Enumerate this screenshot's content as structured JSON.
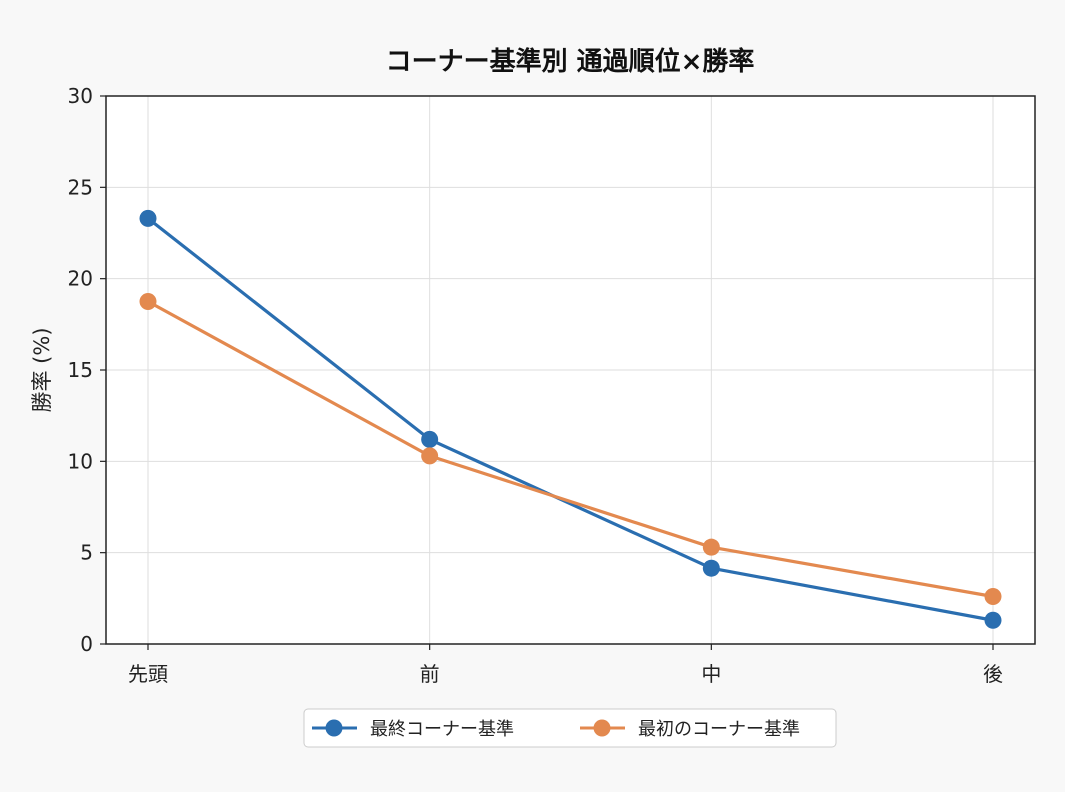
{
  "chart_data": {
    "type": "line",
    "title": "コーナー基準別 通過順位×勝率",
    "xlabel": "",
    "ylabel": "勝率 (%)",
    "categories": [
      "先頭",
      "前",
      "中",
      "後"
    ],
    "ylim": [
      0,
      30
    ],
    "yticks": [
      0,
      5,
      10,
      15,
      20,
      25,
      30
    ],
    "grid": true,
    "legend_position": "bottom-center",
    "series": [
      {
        "name": "最終コーナー基準",
        "values": [
          23.3,
          11.2,
          4.15,
          1.3
        ],
        "color": "#2a6eb0"
      },
      {
        "name": "最初のコーナー基準",
        "values": [
          18.75,
          10.3,
          5.3,
          2.6
        ],
        "color": "#e3894f"
      }
    ]
  }
}
